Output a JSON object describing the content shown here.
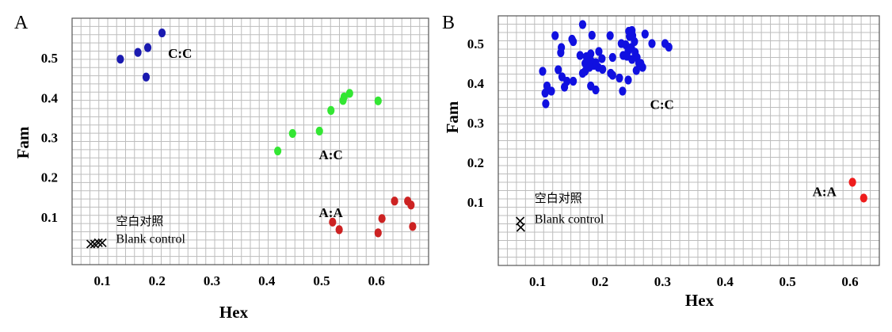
{
  "chart_data": [
    {
      "panel": "A",
      "type": "scatter",
      "xlabel": "Hex",
      "ylabel": "Fam",
      "x_ticks": [
        0.1,
        0.2,
        0.3,
        0.4,
        0.5,
        0.6
      ],
      "y_ticks": [
        0.1,
        0.2,
        0.3,
        0.4,
        0.5
      ],
      "x_tick_labels": [
        "0.1",
        "0.2",
        "0.3",
        "0.4",
        "0.5",
        "0.6"
      ],
      "y_tick_labels": [
        "0.1",
        "0.2",
        "0.3",
        "0.4",
        "0.5"
      ],
      "xlim": [
        0.045,
        0.695
      ],
      "ylim": [
        -0.02,
        0.6
      ],
      "grid": true,
      "series": [
        {
          "name": "C:C",
          "color": "#1a1ab0",
          "marker": "circle",
          "points": [
            [
              0.133,
              0.497
            ],
            [
              0.165,
              0.514
            ],
            [
              0.183,
              0.526
            ],
            [
              0.209,
              0.563
            ],
            [
              0.18,
              0.452
            ]
          ]
        },
        {
          "name": "A:C",
          "color": "#33e633",
          "marker": "circle",
          "points": [
            [
              0.42,
              0.266
            ],
            [
              0.447,
              0.31
            ],
            [
              0.496,
              0.316
            ],
            [
              0.517,
              0.368
            ],
            [
              0.539,
              0.393
            ],
            [
              0.541,
              0.402
            ],
            [
              0.551,
              0.411
            ],
            [
              0.603,
              0.392
            ]
          ]
        },
        {
          "name": "A:A",
          "color": "#cc2222",
          "marker": "circle",
          "points": [
            [
              0.52,
              0.087
            ],
            [
              0.532,
              0.068
            ],
            [
              0.603,
              0.06
            ],
            [
              0.61,
              0.096
            ],
            [
              0.633,
              0.14
            ],
            [
              0.657,
              0.14
            ],
            [
              0.663,
              0.13
            ],
            [
              0.666,
              0.076
            ]
          ]
        },
        {
          "name": "Blank control",
          "color": "#000000",
          "marker": "x",
          "points": [
            [
              0.079,
              0.032
            ],
            [
              0.086,
              0.032
            ],
            [
              0.093,
              0.035
            ],
            [
              0.1,
              0.035
            ]
          ]
        }
      ],
      "labels": {
        "cc": "C:C",
        "ac": "A:C",
        "aa": "A:A",
        "blank_cn": "空白对照",
        "blank_en": "Blank control"
      },
      "label_anchor_data": {
        "cc": [
          0.22,
          0.5
        ],
        "ac": [
          0.495,
          0.245
        ],
        "aa": [
          0.495,
          0.1
        ],
        "blank_cn": [
          0.125,
          0.08
        ],
        "blank_en": [
          0.125,
          0.035
        ]
      }
    },
    {
      "panel": "B",
      "type": "scatter",
      "xlabel": "Hex",
      "ylabel": "Fam",
      "x_ticks": [
        0.1,
        0.2,
        0.3,
        0.4,
        0.5,
        0.6
      ],
      "y_ticks": [
        0.1,
        0.2,
        0.3,
        0.4,
        0.5
      ],
      "x_tick_labels": [
        "0.1",
        "0.2",
        "0.3",
        "0.4",
        "0.5",
        "0.6"
      ],
      "y_tick_labels": [
        "0.1",
        "0.2",
        "0.3",
        "0.4",
        "0.5"
      ],
      "xlim": [
        0.037,
        0.647
      ],
      "ylim": [
        -0.06,
        0.57
      ],
      "grid": true,
      "series": [
        {
          "name": "C:C",
          "color": "#1010e0",
          "marker": "circle",
          "points": [
            [
              0.172,
              0.548
            ],
            [
              0.128,
              0.52
            ],
            [
              0.155,
              0.511
            ],
            [
              0.157,
              0.505
            ],
            [
              0.187,
              0.521
            ],
            [
              0.216,
              0.52
            ],
            [
              0.246,
              0.531
            ],
            [
              0.251,
              0.533
            ],
            [
              0.252,
              0.52
            ],
            [
              0.247,
              0.518
            ],
            [
              0.272,
              0.524
            ],
            [
              0.138,
              0.49
            ],
            [
              0.137,
              0.477
            ],
            [
              0.168,
              0.47
            ],
            [
              0.185,
              0.474
            ],
            [
              0.198,
              0.48
            ],
            [
              0.178,
              0.467
            ],
            [
              0.176,
              0.45
            ],
            [
              0.186,
              0.455
            ],
            [
              0.19,
              0.445
            ],
            [
              0.193,
              0.452
            ],
            [
              0.203,
              0.462
            ],
            [
              0.22,
              0.465
            ],
            [
              0.234,
              0.5
            ],
            [
              0.241,
              0.497
            ],
            [
              0.245,
              0.482
            ],
            [
              0.25,
              0.49
            ],
            [
              0.255,
              0.505
            ],
            [
              0.256,
              0.478
            ],
            [
              0.259,
              0.465
            ],
            [
              0.262,
              0.451
            ],
            [
              0.265,
              0.45
            ],
            [
              0.283,
              0.5
            ],
            [
              0.304,
              0.5
            ],
            [
              0.31,
              0.491
            ],
            [
              0.243,
              0.468
            ],
            [
              0.251,
              0.46
            ],
            [
              0.237,
              0.47
            ],
            [
              0.108,
              0.43
            ],
            [
              0.133,
              0.434
            ],
            [
              0.139,
              0.416
            ],
            [
              0.147,
              0.405
            ],
            [
              0.157,
              0.405
            ],
            [
              0.172,
              0.425
            ],
            [
              0.176,
              0.43
            ],
            [
              0.183,
              0.44
            ],
            [
              0.197,
              0.44
            ],
            [
              0.204,
              0.435
            ],
            [
              0.217,
              0.425
            ],
            [
              0.22,
              0.42
            ],
            [
              0.231,
              0.413
            ],
            [
              0.245,
              0.408
            ],
            [
              0.258,
              0.432
            ],
            [
              0.268,
              0.44
            ],
            [
              0.143,
              0.39
            ],
            [
              0.115,
              0.393
            ],
            [
              0.112,
              0.375
            ],
            [
              0.122,
              0.38
            ],
            [
              0.185,
              0.393
            ],
            [
              0.193,
              0.383
            ],
            [
              0.236,
              0.38
            ],
            [
              0.113,
              0.348
            ]
          ]
        },
        {
          "name": "A:A",
          "color": "#ee1c1c",
          "marker": "circle",
          "points": [
            [
              0.604,
              0.15
            ],
            [
              0.622,
              0.11
            ]
          ]
        },
        {
          "name": "Blank control",
          "color": "#000000",
          "marker": "x",
          "points": [
            [
              0.072,
              0.052
            ],
            [
              0.073,
              0.036
            ]
          ]
        }
      ],
      "labels": {
        "cc": "C:C",
        "aa": "A:A",
        "blank_cn": "空白对照",
        "blank_en": "Blank control"
      },
      "label_anchor_data": {
        "cc": [
          0.28,
          0.335
        ],
        "aa": [
          0.54,
          0.115
        ],
        "blank_cn": [
          0.095,
          0.1
        ],
        "blank_en": [
          0.095,
          0.047
        ]
      }
    }
  ]
}
